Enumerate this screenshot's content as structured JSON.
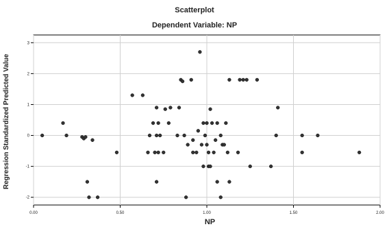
{
  "chart_data": {
    "type": "scatter",
    "title": "Scatterplot",
    "subtitle": "Dependent Variable: NP",
    "xlabel": "NP",
    "ylabel": "Regression Standardized Predicted Value",
    "xlim": [
      0.0,
      2.0
    ],
    "ylim": [
      -2.25,
      3.25
    ],
    "x_ticks": [
      "0.00",
      "0.50",
      "1.00",
      "1.50",
      "2.00"
    ],
    "x_tick_values": [
      0.0,
      0.5,
      1.0,
      1.5,
      2.0
    ],
    "y_ticks": [
      "3",
      "2",
      "1",
      "0",
      "-1",
      "-2"
    ],
    "y_tick_values": [
      3,
      2,
      1,
      0,
      -1,
      -2
    ],
    "grid": true,
    "marker_color": "#333333",
    "points": [
      {
        "x": 0.05,
        "y": 0.0
      },
      {
        "x": 0.17,
        "y": 0.4
      },
      {
        "x": 0.19,
        "y": 0.0
      },
      {
        "x": 0.28,
        "y": -0.05
      },
      {
        "x": 0.29,
        "y": -0.1
      },
      {
        "x": 0.3,
        "y": -0.05
      },
      {
        "x": 0.31,
        "y": -1.5
      },
      {
        "x": 0.32,
        "y": -2.0
      },
      {
        "x": 0.34,
        "y": -0.15
      },
      {
        "x": 0.37,
        "y": -2.0
      },
      {
        "x": 0.48,
        "y": -0.55
      },
      {
        "x": 0.57,
        "y": 1.3
      },
      {
        "x": 0.63,
        "y": 1.3
      },
      {
        "x": 0.66,
        "y": -0.55
      },
      {
        "x": 0.67,
        "y": 0.0
      },
      {
        "x": 0.69,
        "y": 0.4
      },
      {
        "x": 0.7,
        "y": -0.55
      },
      {
        "x": 0.71,
        "y": 0.9
      },
      {
        "x": 0.71,
        "y": 0.0
      },
      {
        "x": 0.71,
        "y": -1.5
      },
      {
        "x": 0.72,
        "y": 0.4
      },
      {
        "x": 0.72,
        "y": -0.55
      },
      {
        "x": 0.73,
        "y": 0.0
      },
      {
        "x": 0.75,
        "y": -0.55
      },
      {
        "x": 0.76,
        "y": 0.85
      },
      {
        "x": 0.78,
        "y": 0.4
      },
      {
        "x": 0.79,
        "y": 0.9
      },
      {
        "x": 0.83,
        "y": 0.0
      },
      {
        "x": 0.84,
        "y": 0.9
      },
      {
        "x": 0.85,
        "y": 1.8
      },
      {
        "x": 0.86,
        "y": 1.75
      },
      {
        "x": 0.87,
        "y": 0.0
      },
      {
        "x": 0.88,
        "y": -2.0
      },
      {
        "x": 0.89,
        "y": -0.3
      },
      {
        "x": 0.91,
        "y": 1.8
      },
      {
        "x": 0.92,
        "y": -0.55
      },
      {
        "x": 0.92,
        "y": -0.15
      },
      {
        "x": 0.94,
        "y": -0.55
      },
      {
        "x": 0.95,
        "y": 0.15
      },
      {
        "x": 0.96,
        "y": 2.7
      },
      {
        "x": 0.97,
        "y": -0.3
      },
      {
        "x": 0.98,
        "y": -1.0
      },
      {
        "x": 0.98,
        "y": 0.4
      },
      {
        "x": 0.99,
        "y": 0.0
      },
      {
        "x": 1.0,
        "y": -0.3
      },
      {
        "x": 1.0,
        "y": 0.4
      },
      {
        "x": 1.01,
        "y": -0.55
      },
      {
        "x": 1.01,
        "y": -1.0
      },
      {
        "x": 1.02,
        "y": 0.85
      },
      {
        "x": 1.02,
        "y": -1.0
      },
      {
        "x": 1.03,
        "y": 0.4
      },
      {
        "x": 1.04,
        "y": -0.55
      },
      {
        "x": 1.05,
        "y": -0.15
      },
      {
        "x": 1.06,
        "y": -1.5
      },
      {
        "x": 1.06,
        "y": 0.4
      },
      {
        "x": 1.08,
        "y": 0.0
      },
      {
        "x": 1.08,
        "y": -2.0
      },
      {
        "x": 1.09,
        "y": -0.3
      },
      {
        "x": 1.1,
        "y": -0.3
      },
      {
        "x": 1.11,
        "y": 0.4
      },
      {
        "x": 1.12,
        "y": -0.55
      },
      {
        "x": 1.13,
        "y": 1.8
      },
      {
        "x": 1.13,
        "y": -1.5
      },
      {
        "x": 1.18,
        "y": -0.55
      },
      {
        "x": 1.19,
        "y": 1.8
      },
      {
        "x": 1.21,
        "y": 1.8
      },
      {
        "x": 1.23,
        "y": 1.8
      },
      {
        "x": 1.25,
        "y": -1.0
      },
      {
        "x": 1.29,
        "y": 1.8
      },
      {
        "x": 1.37,
        "y": -1.0
      },
      {
        "x": 1.4,
        "y": 0.0
      },
      {
        "x": 1.41,
        "y": 0.9
      },
      {
        "x": 1.55,
        "y": 0.0
      },
      {
        "x": 1.55,
        "y": -0.55
      },
      {
        "x": 1.64,
        "y": 0.0
      },
      {
        "x": 1.88,
        "y": -0.55
      }
    ]
  }
}
